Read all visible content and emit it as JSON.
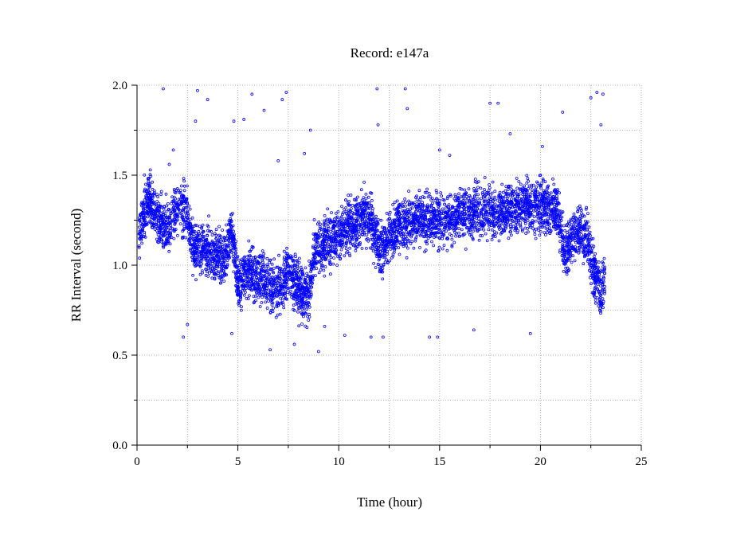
{
  "chart_data": {
    "type": "scatter",
    "title": "Record:  e147a",
    "xlabel": "Time (hour)",
    "ylabel": "RR Interval (second)",
    "xlim": [
      0,
      25
    ],
    "ylim": [
      0,
      2
    ],
    "x_ticks": [
      0,
      5,
      10,
      15,
      20,
      25
    ],
    "x_tick_labels": [
      "0",
      "5",
      "10",
      "15",
      "20",
      "25"
    ],
    "y_ticks": [
      0,
      0.5,
      1.0,
      1.5,
      2.0
    ],
    "y_tick_labels": [
      "0.0",
      "0.5",
      "1.0",
      "1.5",
      "2.0"
    ],
    "grid": true,
    "grid_style": "dotted",
    "marker": "hollow-circle",
    "series": [
      {
        "color": "#0000ff",
        "trend": {
          "x": [
            0.1,
            0.3,
            0.6,
            1.0,
            1.5,
            2.0,
            2.5,
            2.8,
            3.2,
            3.8,
            4.3,
            4.7,
            5.0,
            5.5,
            6.0,
            6.5,
            7.0,
            7.5,
            8.0,
            8.5,
            8.8,
            9.5,
            10.5,
            11.5,
            12.0,
            12.5,
            13.0,
            14.0,
            15.0,
            16.0,
            17.0,
            18.0,
            19.0,
            20.0,
            20.8,
            21.2,
            21.8,
            22.3,
            22.6,
            23.0,
            23.2
          ],
          "y": [
            1.15,
            1.3,
            1.38,
            1.25,
            1.2,
            1.32,
            1.3,
            1.08,
            1.1,
            1.05,
            1.02,
            1.2,
            0.88,
            0.98,
            0.92,
            0.9,
            0.85,
            0.98,
            0.86,
            0.82,
            1.1,
            1.13,
            1.22,
            1.27,
            1.08,
            1.15,
            1.22,
            1.26,
            1.25,
            1.28,
            1.3,
            1.3,
            1.33,
            1.33,
            1.32,
            1.05,
            1.2,
            1.15,
            0.98,
            0.85,
            0.92
          ]
        },
        "outliers": {
          "x": [
            1.3,
            2.9,
            3.0,
            3.5,
            4.8,
            5.3,
            5.7,
            6.3,
            7.0,
            7.2,
            7.4,
            8.3,
            8.6,
            11.9,
            11.95,
            13.3,
            13.4,
            15.0,
            15.5,
            17.5,
            17.9,
            18.5,
            20.1,
            21.1,
            22.5,
            22.8,
            23.0,
            23.1,
            1.6,
            1.8,
            2.3,
            2.5,
            4.7,
            6.6,
            7.8,
            9.0,
            9.3,
            10.3,
            11.6,
            12.2,
            14.5,
            14.9,
            16.7,
            19.5
          ],
          "y": [
            1.98,
            1.8,
            1.97,
            1.92,
            1.8,
            1.81,
            1.95,
            1.86,
            1.58,
            1.92,
            1.96,
            1.62,
            1.75,
            1.98,
            1.78,
            1.98,
            1.87,
            1.64,
            1.61,
            1.9,
            1.9,
            1.73,
            1.66,
            1.85,
            1.93,
            1.96,
            1.78,
            1.95,
            1.56,
            1.64,
            0.6,
            0.67,
            0.62,
            0.53,
            0.56,
            0.52,
            0.66,
            0.61,
            0.6,
            0.6,
            0.6,
            0.6,
            0.64,
            0.62
          ]
        }
      }
    ]
  }
}
